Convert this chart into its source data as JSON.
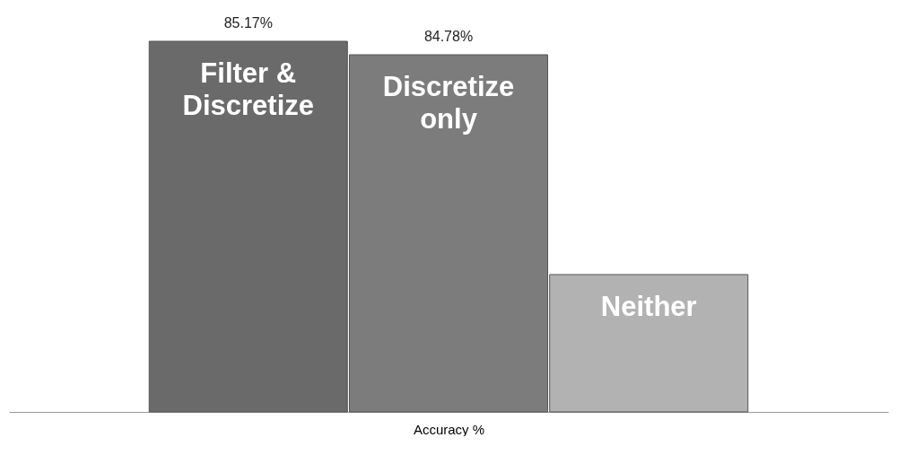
{
  "chart_data": {
    "type": "bar",
    "xlabel": "Accuracy %",
    "categories": [
      "Filter & Discretize",
      "Discretize only",
      "Neither"
    ],
    "values": [
      85.17,
      84.78,
      78.41
    ],
    "colors": [
      "#6a6a6a",
      "#7c7c7c",
      "#b2b2b2"
    ],
    "value_labels": [
      "85.17%",
      "84.78%",
      null
    ],
    "ylim": [
      74.43,
      85.17
    ],
    "grid": false
  }
}
